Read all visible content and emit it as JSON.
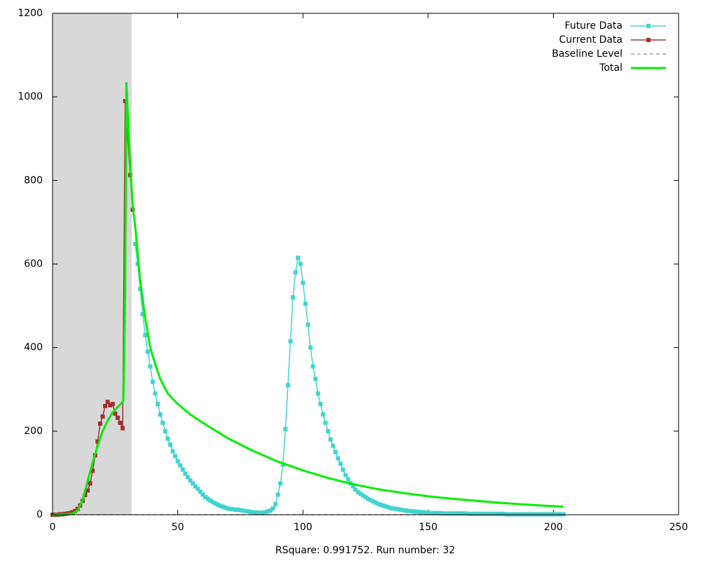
{
  "chart_data": {
    "type": "line",
    "xlabel": "RSquare: 0.991752. Run number: 32",
    "xlim": [
      0,
      250
    ],
    "xticks": [
      0,
      50,
      100,
      150,
      200,
      250
    ],
    "ylim": [
      0,
      1200
    ],
    "yticks": [
      0,
      200,
      400,
      600,
      800,
      1000,
      1200
    ],
    "highlight_xrange": [
      0,
      31.6
    ],
    "highlight_color": "#d8d8d8",
    "legend": "top-right",
    "series": [
      {
        "name": "Future Data",
        "color": "#40d4d0",
        "marker": true,
        "x": [
          33,
          34,
          35,
          36,
          37,
          38,
          39,
          40,
          41,
          42,
          43,
          44,
          45,
          46,
          47,
          48,
          49,
          50,
          51,
          52,
          53,
          54,
          55,
          56,
          57,
          58,
          59,
          60,
          61,
          62,
          63,
          64,
          65,
          66,
          67,
          68,
          69,
          70,
          71,
          72,
          73,
          74,
          75,
          76,
          77,
          78,
          79,
          80,
          81,
          82,
          83,
          84,
          85,
          86,
          87,
          88,
          89,
          90,
          91,
          92,
          93,
          94,
          95,
          96,
          97,
          98,
          99,
          100,
          101,
          102,
          103,
          104,
          105,
          106,
          107,
          108,
          109,
          110,
          111,
          112,
          113,
          114,
          115,
          116,
          117,
          118,
          119,
          120,
          121,
          122,
          123,
          124,
          125,
          126,
          127,
          128,
          129,
          130,
          131,
          132,
          133,
          134,
          135,
          136,
          137,
          138,
          139,
          140,
          141,
          142,
          143,
          144,
          145,
          146,
          147,
          148,
          149,
          150,
          151,
          152,
          153,
          154,
          155,
          156,
          157,
          158,
          159,
          160,
          161,
          162,
          163,
          164,
          165,
          166,
          167,
          168,
          169,
          170,
          171,
          172,
          173,
          174,
          175,
          176,
          177,
          178,
          179,
          180,
          181,
          182,
          183,
          184,
          185,
          186,
          187,
          188,
          189,
          190,
          191,
          192,
          193,
          194,
          195,
          196,
          197,
          198,
          199,
          200,
          201,
          202,
          203,
          204
        ],
        "values": [
          648,
          600,
          540,
          480,
          430,
          390,
          355,
          318,
          290,
          265,
          240,
          220,
          200,
          182,
          168,
          152,
          140,
          128,
          118,
          108,
          98,
          90,
          82,
          75,
          68,
          62,
          55,
          48,
          42,
          38,
          34,
          30,
          27,
          24,
          21,
          19,
          17,
          15,
          14,
          13,
          12,
          12,
          11,
          10,
          9,
          8,
          7,
          6,
          6,
          5,
          5,
          5,
          6,
          8,
          10,
          15,
          25,
          48,
          75,
          120,
          205,
          310,
          415,
          520,
          580,
          615,
          600,
          555,
          505,
          455,
          400,
          355,
          325,
          290,
          265,
          240,
          220,
          200,
          180,
          165,
          150,
          135,
          122,
          108,
          95,
          85,
          75,
          68,
          60,
          54,
          50,
          46,
          42,
          38,
          35,
          32,
          29,
          26,
          24,
          22,
          20,
          18,
          16,
          15,
          14,
          13,
          12,
          11,
          10,
          9,
          9,
          8,
          7,
          7,
          6,
          6,
          5,
          5,
          4,
          4,
          4,
          4,
          4,
          3,
          3,
          3,
          3,
          3,
          3,
          3,
          3,
          3,
          3,
          2,
          2,
          2,
          2,
          2,
          2,
          2,
          2,
          2,
          2,
          2,
          2,
          2,
          2,
          2,
          1,
          1,
          1,
          1,
          1,
          1,
          1,
          1,
          1,
          1,
          1,
          1,
          1,
          1,
          1,
          1,
          1,
          1,
          1,
          1,
          1,
          1,
          1,
          1
        ]
      },
      {
        "name": "Current Data",
        "color": "#a03030",
        "marker": true,
        "x": [
          0,
          1,
          2,
          3,
          4,
          5,
          6,
          7,
          8,
          9,
          10,
          11,
          12,
          13,
          14,
          15,
          16,
          17,
          18,
          19,
          20,
          21,
          22,
          23,
          24,
          25,
          26,
          27,
          28,
          29,
          30,
          31,
          32
        ],
        "values": [
          0,
          0,
          0,
          1,
          1,
          2,
          3,
          4,
          6,
          9,
          14,
          22,
          33,
          47,
          58,
          75,
          105,
          142,
          175,
          218,
          235,
          260,
          270,
          262,
          265,
          242,
          232,
          220,
          207,
          990,
          900,
          813,
          730
        ]
      },
      {
        "name": "Baseline Level",
        "color": "#a0a0a0",
        "dash": true,
        "marker": false,
        "x": [
          0,
          204
        ],
        "values": [
          0,
          0
        ]
      },
      {
        "name": "Total",
        "color": "#00ee00",
        "marker": false,
        "width": 3,
        "x": [
          0,
          5,
          8,
          10,
          12,
          14,
          16,
          18,
          20,
          22,
          24,
          26,
          28,
          28.3,
          29,
          29.5,
          30,
          31,
          32,
          33,
          35,
          37,
          39,
          41,
          43,
          46,
          50,
          55,
          60,
          70,
          80,
          90,
          100,
          110,
          120,
          130,
          140,
          150,
          160,
          170,
          180,
          190,
          204
        ],
        "values": [
          0,
          1,
          3,
          10,
          35,
          80,
          125,
          165,
          200,
          225,
          245,
          258,
          270,
          275,
          540,
          1035,
          960,
          840,
          740,
          690,
          560,
          470,
          400,
          360,
          325,
          290,
          265,
          240,
          220,
          183,
          153,
          127,
          106,
          88,
          73,
          61,
          52,
          44,
          38,
          33,
          28,
          24,
          19
        ]
      }
    ]
  }
}
